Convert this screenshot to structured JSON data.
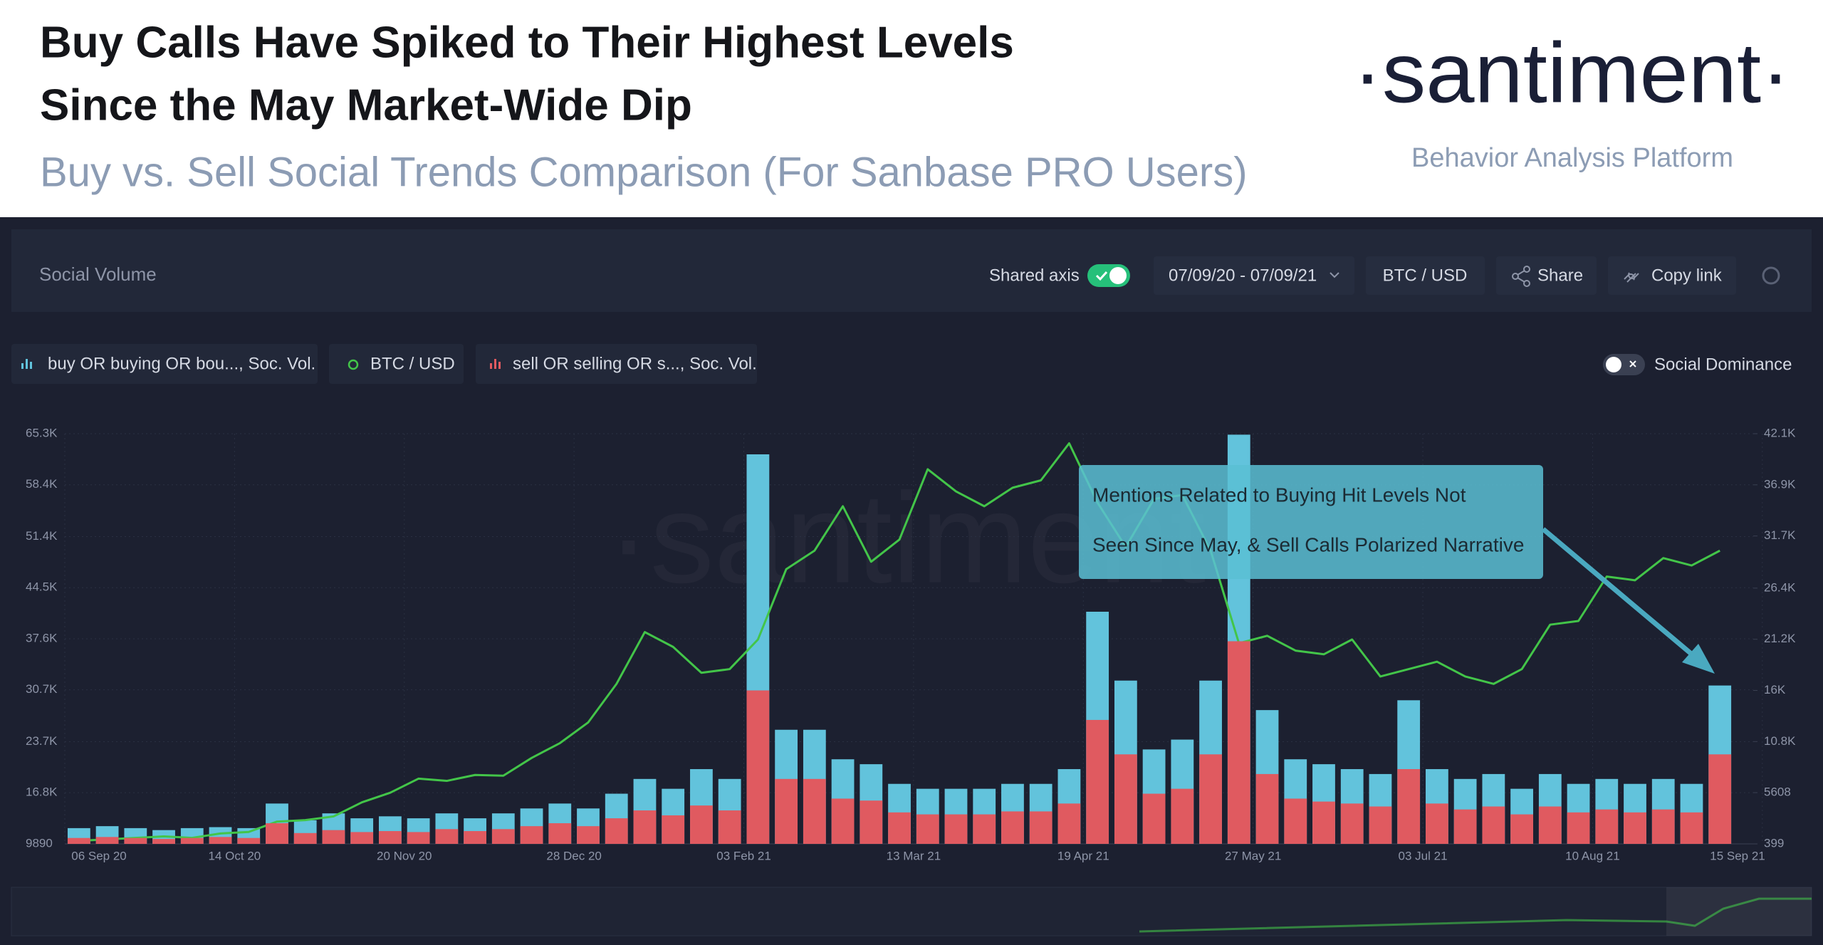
{
  "header": {
    "title_lines": [
      "Buy Calls Have Spiked to Their Highest Levels",
      "Since the May Market-Wide Dip"
    ],
    "subtitle": "Buy vs. Sell Social Trends Comparison (For Sanbase PRO Users)",
    "logo": "·santiment·",
    "tagline": "Behavior Analysis Platform"
  },
  "ui": {
    "panel_title": "Social Volume",
    "shared_axis": "Shared axis",
    "date_range": "07/09/20 - 07/09/21",
    "pair": "BTC / USD",
    "share": "Share",
    "copy_link": "Copy link",
    "social_dominance": "Social Dominance",
    "watermark": "·santiment"
  },
  "chart_data": {
    "type": "bar",
    "annotations": [
      "Mentions Related to Buying Hit Levels Not",
      "Seen Since May, & Sell Calls Polarized Narrative"
    ],
    "categories": [
      "06 Sep 20",
      null,
      null,
      null,
      null,
      null,
      "14 Oct 20",
      null,
      null,
      null,
      null,
      null,
      "20 Nov 20",
      null,
      null,
      null,
      null,
      null,
      "28 Dec 20",
      null,
      null,
      null,
      null,
      null,
      "03 Feb 21",
      null,
      null,
      null,
      null,
      null,
      "13 Mar 21",
      null,
      null,
      null,
      null,
      null,
      "19 Apr 21",
      null,
      null,
      null,
      null,
      null,
      "27 May 21",
      null,
      null,
      null,
      null,
      null,
      "03 Jul 21",
      null,
      null,
      null,
      null,
      null,
      "10 Aug 21",
      null,
      null,
      null,
      null,
      null,
      "15 Sep 21"
    ],
    "series": [
      {
        "name": "buy OR buying OR bou..., Soc. Vol.",
        "type": "bar",
        "axis": "y2",
        "color": "#62c3dc",
        "values": [
          2000,
          2200,
          2000,
          1800,
          2000,
          2100,
          2000,
          4500,
          2800,
          3500,
          3000,
          3200,
          3000,
          3500,
          3000,
          3500,
          4000,
          4500,
          4000,
          5500,
          7000,
          6000,
          8000,
          7000,
          40000,
          12000,
          12000,
          9000,
          8500,
          6500,
          6000,
          6000,
          6000,
          6500,
          6500,
          8000,
          24000,
          17000,
          10000,
          11000,
          17000,
          42000,
          14000,
          9000,
          8500,
          8000,
          7500,
          15000,
          8000,
          7000,
          7500,
          6000,
          7500,
          6500,
          7000,
          6500,
          7000,
          6500,
          16500,
          null,
          null
        ]
      },
      {
        "name": "BTC / USD",
        "type": "line",
        "color": "#43c549",
        "values": [
          10300,
          10500,
          10700,
          10900,
          10700,
          11300,
          11500,
          12900,
          13100,
          13600,
          15500,
          16800,
          18700,
          18400,
          19200,
          19100,
          21500,
          23500,
          26300,
          31500,
          38500,
          36500,
          33000,
          33500,
          37500,
          47000,
          49500,
          55500,
          48000,
          51000,
          60500,
          57500,
          55500,
          58000,
          59000,
          64000,
          56000,
          50000,
          56500,
          57000,
          49500,
          37000,
          38000,
          36000,
          35500,
          37500,
          32500,
          33500,
          34500,
          32500,
          31500,
          33500,
          39500,
          40000,
          46000,
          45500,
          48500,
          47500,
          49500,
          null,
          null
        ]
      },
      {
        "name": "sell OR selling OR s..., Soc. Vol.",
        "type": "bar",
        "axis": "y2",
        "color": "#e05a60",
        "values": [
          1000,
          1100,
          1000,
          900,
          1000,
          1100,
          1000,
          2500,
          1500,
          1800,
          1600,
          1700,
          1600,
          1900,
          1700,
          1900,
          2200,
          2500,
          2200,
          3000,
          3800,
          3300,
          4300,
          3800,
          16000,
          7000,
          7000,
          5000,
          4800,
          3600,
          3400,
          3400,
          3400,
          3700,
          3700,
          4500,
          13000,
          9500,
          5500,
          6000,
          9500,
          21000,
          7500,
          5000,
          4700,
          4500,
          4200,
          8000,
          4500,
          3900,
          4200,
          3400,
          4200,
          3600,
          3900,
          3600,
          3900,
          3600,
          9500,
          null,
          null
        ]
      }
    ],
    "ylim": [
      9890,
      65300
    ],
    "yticks": [
      9890,
      {
        "value": 16800,
        "label": "16.8K"
      },
      {
        "value": 23700,
        "label": "23.7K"
      },
      {
        "value": 30700,
        "label": "30.7K"
      },
      {
        "value": 37600,
        "label": "37.6K"
      },
      {
        "value": 44500,
        "label": "44.5K"
      },
      {
        "value": 51400,
        "label": "51.4K"
      },
      {
        "value": 58400,
        "label": "58.4K"
      },
      {
        "value": 65300,
        "label": "65.3K"
      }
    ],
    "y2lim": [
      399,
      42100
    ],
    "y2ticks": [
      399,
      5608,
      {
        "value": 10800,
        "label": "10.8K"
      },
      {
        "value": 16000,
        "label": "16K"
      },
      {
        "value": 21200,
        "label": "21.2K"
      },
      {
        "value": 26400,
        "label": "26.4K"
      },
      {
        "value": 31700,
        "label": "31.7K"
      },
      {
        "value": 36900,
        "label": "36.9K"
      },
      {
        "value": 42100,
        "label": "42.1K"
      }
    ],
    "grid": true
  }
}
